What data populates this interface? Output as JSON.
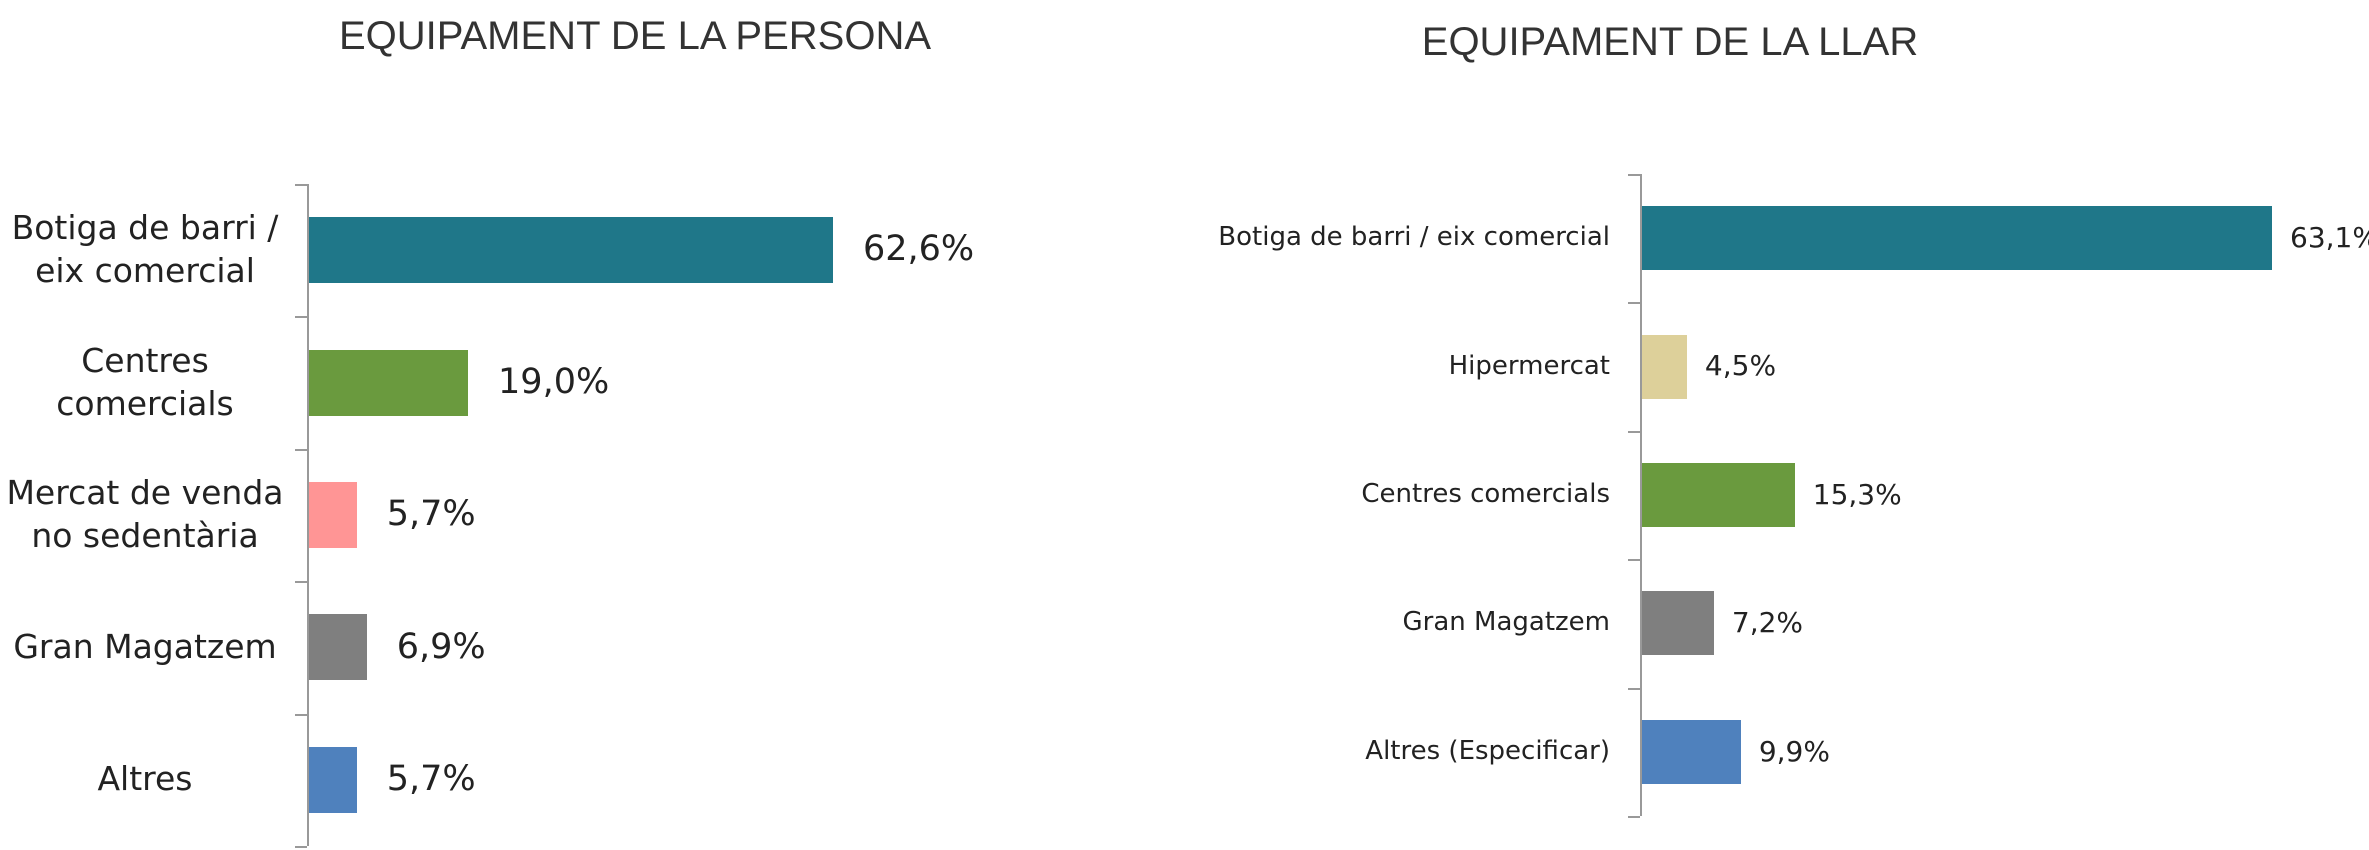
{
  "chart_data": [
    {
      "type": "bar",
      "orientation": "horizontal",
      "title": "EQUIPAMENT DE LA PERSONA",
      "categories": [
        "Botiga de barri / eix comercial",
        "Centres comercials",
        "Mercat de venda no sedentària",
        "Gran Magatzem",
        "Altres"
      ],
      "values": [
        62.6,
        19.0,
        5.7,
        6.9,
        5.7
      ],
      "value_labels": [
        "62,6%",
        "19,0%",
        "5,7%",
        "6,9%",
        "5,7%"
      ],
      "colors": [
        "#1f7789",
        "#6a9a3e",
        "#ff9595",
        "#7f7f7f",
        "#4f81bd"
      ]
    },
    {
      "type": "bar",
      "orientation": "horizontal",
      "title": "EQUIPAMENT DE LA LLAR",
      "categories": [
        "Botiga de barri / eix comercial",
        "Hipermercat",
        "Centres comercials",
        "Gran Magatzem",
        "Altres (Especificar)"
      ],
      "values": [
        63.1,
        4.5,
        15.3,
        7.2,
        9.9
      ],
      "value_labels": [
        "63,1%",
        "4,5%",
        "15,3%",
        "7,2%",
        "9,9%"
      ],
      "colors": [
        "#1f7789",
        "#ddd09a",
        "#6a9a3e",
        "#7f7f7f",
        "#4f81bd"
      ]
    }
  ]
}
